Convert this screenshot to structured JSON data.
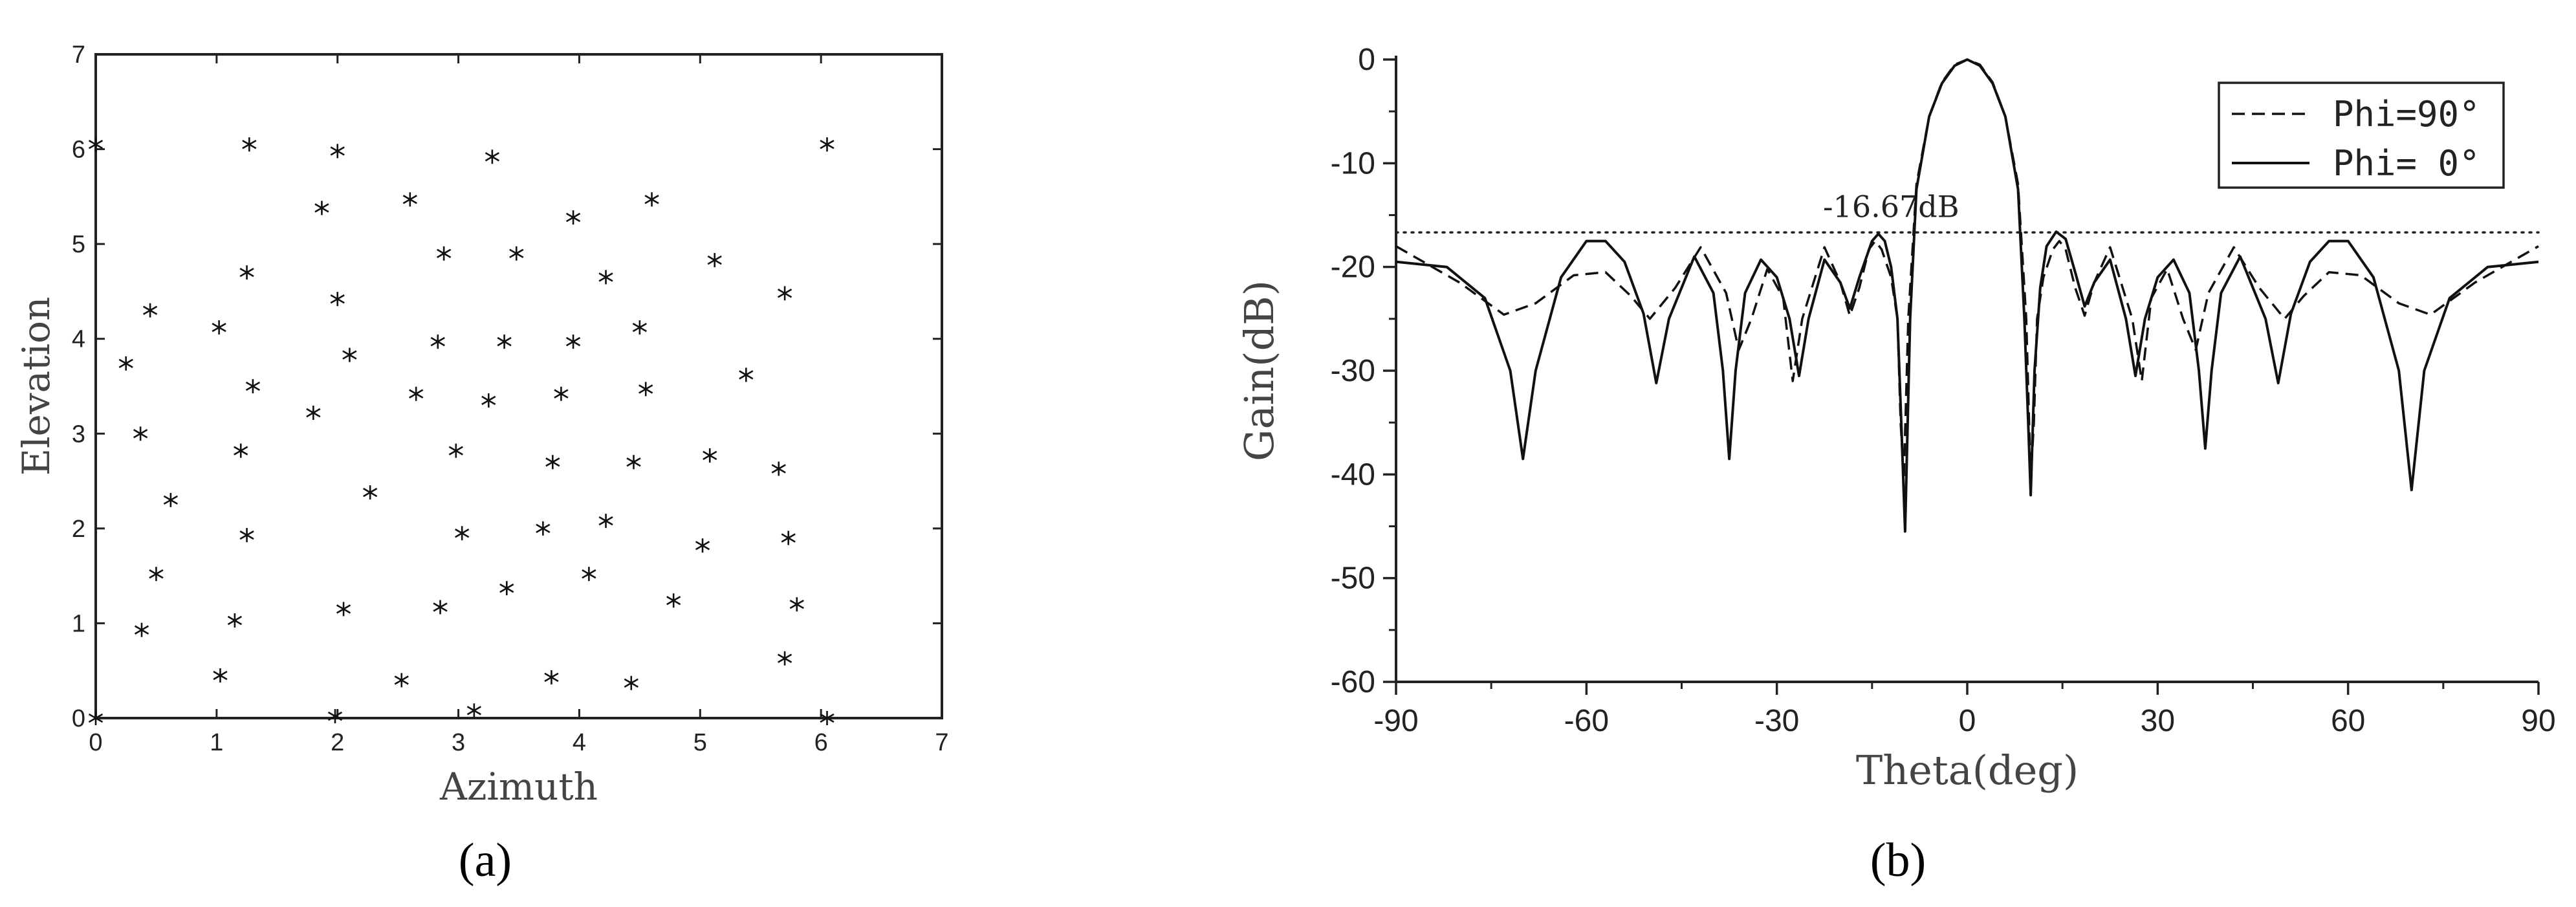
{
  "chart_data": [
    {
      "type": "scatter",
      "panel_label": "(a)",
      "xlabel": "Azimuth",
      "ylabel": "Elevation",
      "xlim": [
        0,
        7
      ],
      "ylim": [
        0,
        7
      ],
      "xticks": [
        0,
        1,
        2,
        3,
        4,
        5,
        6,
        7
      ],
      "yticks": [
        0,
        1,
        2,
        3,
        4,
        5,
        6,
        7
      ],
      "marker": "*",
      "grid": false,
      "points": [
        [
          0.0,
          6.05
        ],
        [
          1.27,
          6.05
        ],
        [
          2.0,
          5.98
        ],
        [
          3.28,
          5.92
        ],
        [
          6.05,
          6.05
        ],
        [
          1.87,
          5.38
        ],
        [
          2.6,
          5.47
        ],
        [
          3.95,
          5.28
        ],
        [
          4.6,
          5.47
        ],
        [
          1.25,
          4.7
        ],
        [
          2.88,
          4.9
        ],
        [
          3.48,
          4.9
        ],
        [
          4.22,
          4.65
        ],
        [
          5.12,
          4.83
        ],
        [
          5.7,
          4.48
        ],
        [
          0.45,
          4.3
        ],
        [
          2.0,
          4.42
        ],
        [
          1.02,
          4.12
        ],
        [
          4.5,
          4.12
        ],
        [
          0.25,
          3.74
        ],
        [
          2.1,
          3.83
        ],
        [
          2.83,
          3.97
        ],
        [
          3.38,
          3.97
        ],
        [
          3.95,
          3.97
        ],
        [
          5.38,
          3.62
        ],
        [
          1.3,
          3.5
        ],
        [
          2.65,
          3.42
        ],
        [
          3.25,
          3.35
        ],
        [
          3.85,
          3.42
        ],
        [
          4.55,
          3.47
        ],
        [
          0.37,
          3.0
        ],
        [
          1.8,
          3.22
        ],
        [
          1.2,
          2.82
        ],
        [
          2.98,
          2.82
        ],
        [
          3.78,
          2.7
        ],
        [
          4.45,
          2.7
        ],
        [
          5.08,
          2.77
        ],
        [
          5.65,
          2.63
        ],
        [
          0.62,
          2.3
        ],
        [
          2.27,
          2.38
        ],
        [
          1.25,
          1.93
        ],
        [
          3.03,
          1.95
        ],
        [
          3.7,
          2.0
        ],
        [
          4.22,
          2.08
        ],
        [
          5.02,
          1.82
        ],
        [
          5.73,
          1.9
        ],
        [
          0.5,
          1.52
        ],
        [
          3.4,
          1.37
        ],
        [
          4.08,
          1.52
        ],
        [
          4.78,
          1.24
        ],
        [
          5.8,
          1.2
        ],
        [
          0.38,
          0.93
        ],
        [
          1.15,
          1.03
        ],
        [
          2.05,
          1.15
        ],
        [
          2.85,
          1.17
        ],
        [
          1.03,
          0.45
        ],
        [
          2.53,
          0.4
        ],
        [
          3.77,
          0.43
        ],
        [
          4.43,
          0.37
        ],
        [
          5.7,
          0.63
        ],
        [
          0.0,
          0.0
        ],
        [
          1.98,
          0.02
        ],
        [
          3.13,
          0.08
        ],
        [
          6.05,
          0.0
        ]
      ]
    },
    {
      "type": "line",
      "panel_label": "(b)",
      "xlabel": "Theta(deg)",
      "ylabel": "Gain(dB)",
      "xlim": [
        -90,
        90
      ],
      "ylim": [
        -60,
        0
      ],
      "xticks": [
        -90,
        -60,
        -30,
        0,
        30,
        60,
        90
      ],
      "yticks": [
        0,
        -10,
        -20,
        -30,
        -40,
        -50,
        -60
      ],
      "grid": false,
      "legend_position": "top-right",
      "reference_line": {
        "y": -16.67,
        "style": "dotted",
        "label": "-16.67dB",
        "label_x": -12
      },
      "series": [
        {
          "name": "Phi=90°",
          "style": "dashed",
          "points": [
            [
              -90,
              -18.0
            ],
            [
              -80,
              -21.5
            ],
            [
              -73,
              -24.6
            ],
            [
              -68,
              -23.5
            ],
            [
              -62,
              -20.8
            ],
            [
              -57,
              -20.5
            ],
            [
              -53,
              -22.8
            ],
            [
              -50,
              -25.0
            ],
            [
              -46,
              -22.0
            ],
            [
              -42,
              -18.1
            ],
            [
              -38,
              -22.5
            ],
            [
              -36,
              -28.0
            ],
            [
              -34,
              -25.0
            ],
            [
              -31.5,
              -20.2
            ],
            [
              -29,
              -23.0
            ],
            [
              -27.5,
              -31.0
            ],
            [
              -26,
              -25.0
            ],
            [
              -22.5,
              -18.1
            ],
            [
              -20,
              -21.5
            ],
            [
              -18.5,
              -24.7
            ],
            [
              -17,
              -22.0
            ],
            [
              -15.5,
              -18.3
            ],
            [
              -14.5,
              -17.5
            ],
            [
              -13.5,
              -18.3
            ],
            [
              -12,
              -21.0
            ],
            [
              -11,
              -25.0
            ],
            [
              -10.5,
              -35.0
            ],
            [
              -10,
              -40.5
            ],
            [
              -9.3,
              -25.0
            ],
            [
              -8,
              -12.0
            ],
            [
              -6,
              -5.5
            ],
            [
              -4,
              -2.2
            ],
            [
              -2,
              -0.5
            ],
            [
              0,
              0
            ],
            [
              2,
              -0.5
            ],
            [
              4,
              -2.2
            ],
            [
              6,
              -5.5
            ],
            [
              8,
              -12.0
            ],
            [
              9.3,
              -25.0
            ],
            [
              10,
              -40.5
            ],
            [
              10.5,
              -35.0
            ],
            [
              11,
              -25.0
            ],
            [
              12,
              -21.0
            ],
            [
              13.5,
              -18.3
            ],
            [
              14.5,
              -17.5
            ],
            [
              15.5,
              -18.3
            ],
            [
              17,
              -22.0
            ],
            [
              18.5,
              -24.7
            ],
            [
              20,
              -21.5
            ],
            [
              22.5,
              -18.1
            ],
            [
              26,
              -25.0
            ],
            [
              27.5,
              -31.0
            ],
            [
              29,
              -23.0
            ],
            [
              31.5,
              -20.2
            ],
            [
              34,
              -25.0
            ],
            [
              36,
              -28.0
            ],
            [
              38,
              -22.5
            ],
            [
              42,
              -18.1
            ],
            [
              46,
              -22.0
            ],
            [
              50,
              -25.0
            ],
            [
              53,
              -22.8
            ],
            [
              57,
              -20.5
            ],
            [
              62,
              -20.8
            ],
            [
              68,
              -23.5
            ],
            [
              73,
              -24.6
            ],
            [
              80,
              -21.5
            ],
            [
              90,
              -18.0
            ]
          ]
        },
        {
          "name": "Phi= 0°",
          "style": "solid",
          "points": [
            [
              -90,
              -19.5
            ],
            [
              -82,
              -20.0
            ],
            [
              -76,
              -23.0
            ],
            [
              -72,
              -30.0
            ],
            [
              -70,
              -38.5
            ],
            [
              -68,
              -30.0
            ],
            [
              -64,
              -21.0
            ],
            [
              -60,
              -17.5
            ],
            [
              -57,
              -17.5
            ],
            [
              -54,
              -19.5
            ],
            [
              -51,
              -24.5
            ],
            [
              -49,
              -31.2
            ],
            [
              -47,
              -25.0
            ],
            [
              -43,
              -19.0
            ],
            [
              -40,
              -22.5
            ],
            [
              -38.5,
              -30.0
            ],
            [
              -37.5,
              -38.5
            ],
            [
              -36.5,
              -30.0
            ],
            [
              -35,
              -22.5
            ],
            [
              -32.5,
              -19.3
            ],
            [
              -30,
              -21.0
            ],
            [
              -28,
              -25.0
            ],
            [
              -26.5,
              -30.5
            ],
            [
              -25,
              -25.0
            ],
            [
              -22.5,
              -19.3
            ],
            [
              -20,
              -21.5
            ],
            [
              -18.5,
              -24.0
            ],
            [
              -17,
              -21.0
            ],
            [
              -15,
              -17.5
            ],
            [
              -14,
              -16.8
            ],
            [
              -13,
              -17.5
            ],
            [
              -12,
              -20.0
            ],
            [
              -11,
              -25.0
            ],
            [
              -10.4,
              -35.0
            ],
            [
              -9.8,
              -45.5
            ],
            [
              -9.0,
              -25.0
            ],
            [
              -8,
              -12.5
            ],
            [
              -6,
              -5.5
            ],
            [
              -4,
              -2.3
            ],
            [
              -2,
              -0.6
            ],
            [
              0,
              0
            ],
            [
              2,
              -0.6
            ],
            [
              4,
              -2.3
            ],
            [
              6,
              -5.5
            ],
            [
              8,
              -12.5
            ],
            [
              9.0,
              -25.0
            ],
            [
              9.6,
              -35.0
            ],
            [
              10,
              -42.0
            ],
            [
              10.6,
              -30.0
            ],
            [
              11.5,
              -22.0
            ],
            [
              12.5,
              -18.0
            ],
            [
              14,
              -16.6
            ],
            [
              15.5,
              -17.3
            ],
            [
              17,
              -20.5
            ],
            [
              18.5,
              -23.8
            ],
            [
              20,
              -21.5
            ],
            [
              22.5,
              -19.3
            ],
            [
              25,
              -25.0
            ],
            [
              26.5,
              -30.5
            ],
            [
              28,
              -25.0
            ],
            [
              30,
              -21.0
            ],
            [
              32.5,
              -19.3
            ],
            [
              35,
              -22.5
            ],
            [
              36.5,
              -30.0
            ],
            [
              37.5,
              -37.5
            ],
            [
              38.5,
              -30.0
            ],
            [
              40,
              -22.5
            ],
            [
              43,
              -19.0
            ],
            [
              47,
              -25.0
            ],
            [
              49,
              -31.2
            ],
            [
              51,
              -24.5
            ],
            [
              54,
              -19.5
            ],
            [
              57,
              -17.5
            ],
            [
              60,
              -17.5
            ],
            [
              64,
              -21.0
            ],
            [
              68,
              -30.0
            ],
            [
              70,
              -41.5
            ],
            [
              72,
              -30.0
            ],
            [
              76,
              -23.0
            ],
            [
              82,
              -20.0
            ],
            [
              90,
              -19.5
            ]
          ]
        }
      ]
    }
  ]
}
